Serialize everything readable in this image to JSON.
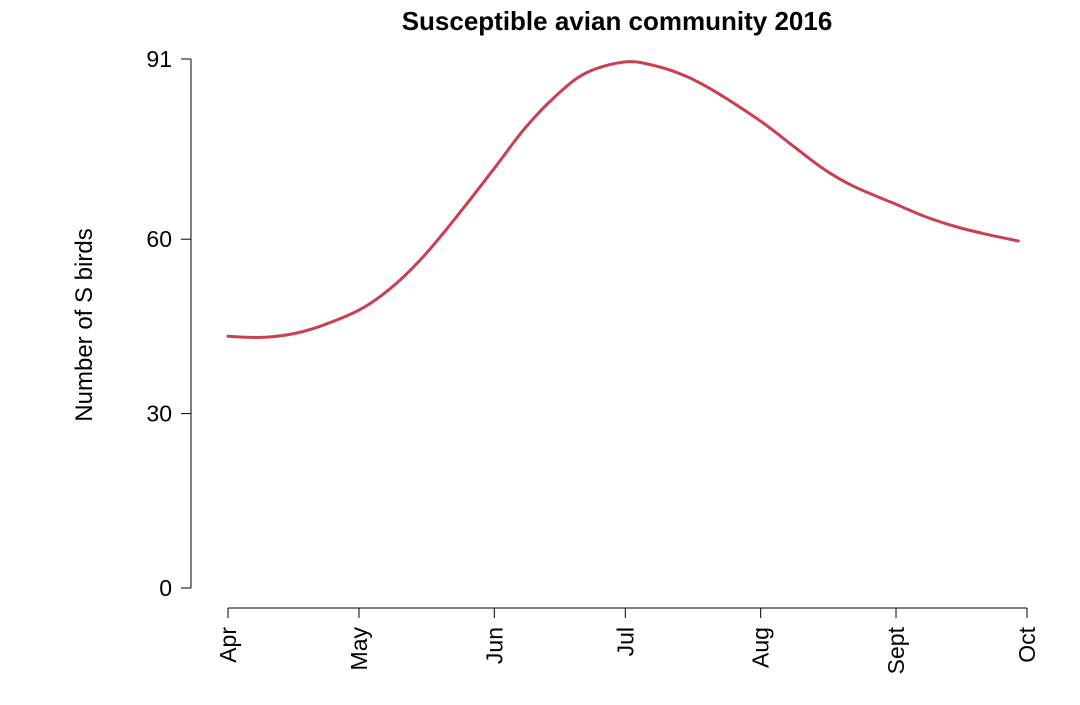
{
  "chart_data": {
    "type": "line",
    "title": "Susceptible avian community 2016",
    "xlabel": "",
    "ylabel": "Number of S birds",
    "x_tick_labels": [
      "Apr",
      "May",
      "Jun",
      "Jul",
      "Aug",
      "Sept",
      "Oct"
    ],
    "x_tick_dates": [
      "2016-04-01",
      "2016-05-01",
      "2016-06-01",
      "2016-07-01",
      "2016-08-01",
      "2016-09-01",
      "2016-10-01"
    ],
    "y_ticks": [
      0,
      30,
      60,
      91
    ],
    "ylim": [
      0,
      91
    ],
    "grid": false,
    "legend": "none",
    "color": "#cc3f50",
    "series": [
      {
        "x": [
          "2016-04-01",
          "2016-04-08",
          "2016-04-15",
          "2016-04-22",
          "2016-05-01",
          "2016-05-08",
          "2016-05-15",
          "2016-05-22",
          "2016-06-01",
          "2016-06-08",
          "2016-06-15",
          "2016-06-22",
          "2016-07-01",
          "2016-07-08",
          "2016-07-15",
          "2016-07-22",
          "2016-08-01",
          "2016-08-08",
          "2016-08-15",
          "2016-08-22",
          "2016-09-01",
          "2016-09-08",
          "2016-09-15",
          "2016-09-22",
          "2016-09-29"
        ],
        "y": [
          43.3,
          43.1,
          43.6,
          45.0,
          47.8,
          51.4,
          56.4,
          62.6,
          72.2,
          79.1,
          84.6,
          88.6,
          90.5,
          89.8,
          88.0,
          85.2,
          80.3,
          76.3,
          72.3,
          69.2,
          66.0,
          63.8,
          62.1,
          60.8,
          59.7
        ]
      }
    ]
  }
}
